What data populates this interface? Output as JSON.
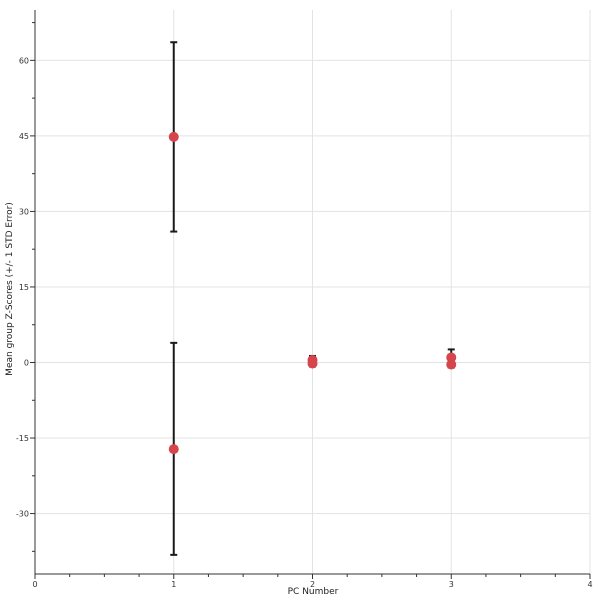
{
  "chart_data": {
    "type": "scatter",
    "title": "",
    "xlabel": "PC Number",
    "ylabel": "Mean group Z-Scores (+/- 1 STD Error)",
    "xlim": [
      0,
      4
    ],
    "ylim": [
      -42,
      70
    ],
    "x_ticks": [
      "0",
      "1",
      "2",
      "3",
      "4"
    ],
    "y_ticks": [
      "-30",
      "-15",
      "0",
      "15",
      "30",
      "45",
      "60"
    ],
    "grid": true,
    "legend": "none",
    "series": [
      {
        "points": [
          {
            "x": 1,
            "y": 44.8,
            "err_low": 26.0,
            "err_high": 63.6
          },
          {
            "x": 1,
            "y": -17.2,
            "err_low": -38.2,
            "err_high": 3.9
          },
          {
            "x": 2,
            "y": 0.5,
            "err_low": -0.3,
            "err_high": 1.3
          },
          {
            "x": 2,
            "y": -0.2,
            "err_low": -0.8,
            "err_high": 0.4
          },
          {
            "x": 3,
            "y": 1.0,
            "err_low": -0.6,
            "err_high": 2.6
          },
          {
            "x": 3,
            "y": -0.4,
            "err_low": -1.0,
            "err_high": 0.2
          }
        ]
      }
    ]
  },
  "colors": {
    "marker": "#d6454b",
    "errorbar": "#1a1a1a",
    "grid": "#e3e3e3",
    "axis": "#333333"
  }
}
